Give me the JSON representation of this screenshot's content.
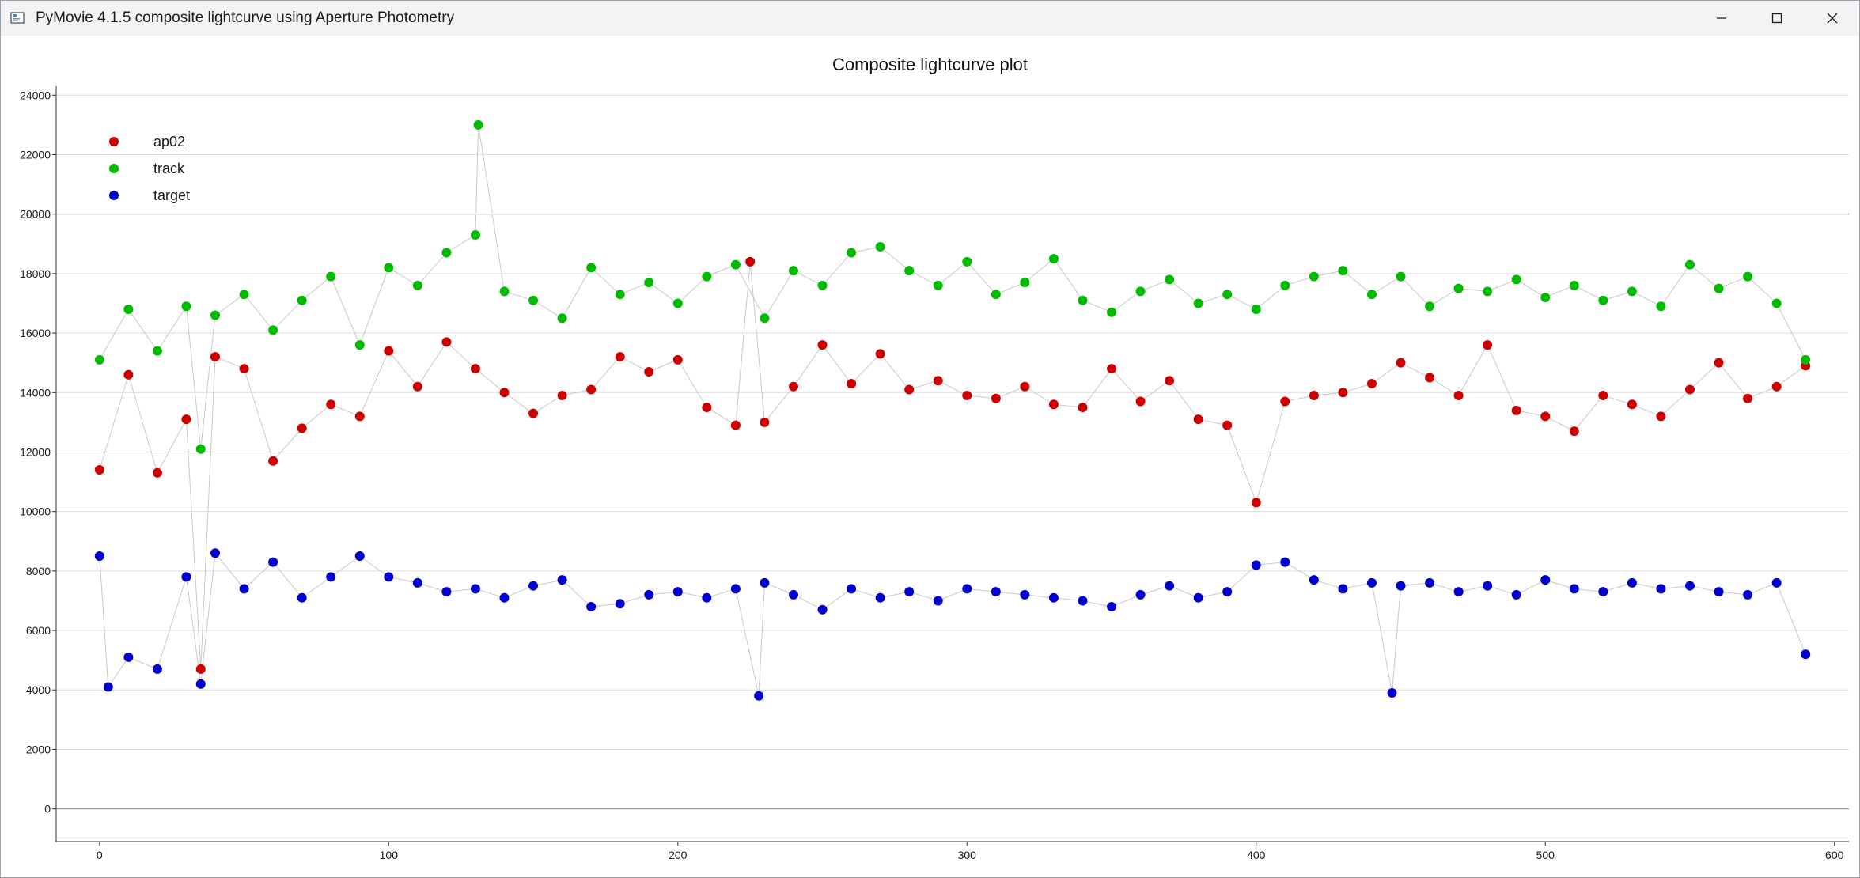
{
  "window": {
    "title": "PyMovie 4.1.5 composite lightcurve using Aperture Photometry",
    "icons": [
      "app-icon",
      "minimize-icon",
      "maximize-icon",
      "close-icon"
    ]
  },
  "chart_data": {
    "type": "scatter",
    "title": "Composite lightcurve plot",
    "xlabel": "",
    "ylabel": "",
    "xlim": [
      -15,
      605
    ],
    "ylim": [
      -1100,
      24300
    ],
    "xticks": [
      0,
      100,
      200,
      300,
      400,
      500,
      600
    ],
    "yticks": [
      0,
      2000,
      4000,
      6000,
      8000,
      10000,
      12000,
      14000,
      16000,
      18000,
      20000,
      22000,
      24000
    ],
    "grid": true,
    "legend_position": "top-left",
    "connecting_line_color": "#c8c8c8",
    "series": [
      {
        "name": "ap02",
        "color": "#cc0000",
        "x": [
          0,
          10,
          20,
          30,
          35,
          40,
          50,
          60,
          70,
          80,
          90,
          100,
          110,
          120,
          130,
          140,
          150,
          160,
          170,
          180,
          190,
          200,
          210,
          220,
          225,
          230,
          240,
          250,
          260,
          270,
          280,
          290,
          300,
          310,
          320,
          330,
          340,
          350,
          360,
          370,
          380,
          390,
          400,
          410,
          420,
          430,
          440,
          450,
          460,
          470,
          480,
          490,
          500,
          510,
          520,
          530,
          540,
          550,
          560,
          570,
          580,
          590
        ],
        "y": [
          11400,
          14600,
          11300,
          13100,
          4700,
          15200,
          14800,
          11700,
          12800,
          13600,
          13200,
          15400,
          14200,
          15700,
          14800,
          14000,
          13300,
          13900,
          14100,
          15200,
          14700,
          15100,
          13500,
          12900,
          18400,
          13000,
          14200,
          15600,
          14300,
          15300,
          14100,
          14400,
          13900,
          13800,
          14200,
          13600,
          13500,
          14800,
          13700,
          14400,
          13100,
          12900,
          10300,
          13700,
          13900,
          14000,
          14300,
          15000,
          14500,
          13900,
          15600,
          13400,
          13200,
          12700,
          13900,
          13600,
          13200,
          14100,
          15000,
          13800,
          14200,
          14900
        ]
      },
      {
        "name": "track",
        "color": "#00bb00",
        "x": [
          0,
          10,
          20,
          30,
          35,
          40,
          50,
          60,
          70,
          80,
          90,
          100,
          110,
          120,
          130,
          131,
          140,
          150,
          160,
          170,
          180,
          190,
          200,
          210,
          220,
          230,
          240,
          250,
          260,
          270,
          280,
          290,
          300,
          310,
          320,
          330,
          340,
          350,
          360,
          370,
          380,
          390,
          400,
          410,
          420,
          430,
          440,
          450,
          460,
          470,
          480,
          490,
          500,
          510,
          520,
          530,
          540,
          550,
          560,
          570,
          580,
          590
        ],
        "y": [
          15100,
          16800,
          15400,
          16900,
          12100,
          16600,
          17300,
          16100,
          17100,
          17900,
          15600,
          18200,
          17600,
          18700,
          19300,
          23000,
          17400,
          17100,
          16500,
          18200,
          17300,
          17700,
          17000,
          17900,
          18300,
          16500,
          18100,
          17600,
          18700,
          18900,
          18100,
          17600,
          18400,
          17300,
          17700,
          18500,
          17100,
          16700,
          17400,
          17800,
          17000,
          17300,
          16800,
          17600,
          17900,
          18100,
          17300,
          17900,
          16900,
          17500,
          17400,
          17800,
          17200,
          17600,
          17100,
          17400,
          16900,
          18300,
          17500,
          17900,
          17000,
          15100
        ]
      },
      {
        "name": "target",
        "color": "#0000cc",
        "x": [
          0,
          3,
          10,
          20,
          30,
          35,
          40,
          50,
          60,
          70,
          80,
          90,
          100,
          110,
          120,
          130,
          140,
          150,
          160,
          170,
          180,
          190,
          200,
          210,
          220,
          228,
          230,
          240,
          250,
          260,
          270,
          280,
          290,
          300,
          310,
          320,
          330,
          340,
          350,
          360,
          370,
          380,
          390,
          400,
          410,
          420,
          430,
          440,
          447,
          450,
          460,
          470,
          480,
          490,
          500,
          510,
          520,
          530,
          540,
          550,
          560,
          570,
          580,
          590
        ],
        "y": [
          8500,
          4100,
          5100,
          4700,
          7800,
          4200,
          8600,
          7400,
          8300,
          7100,
          7800,
          8500,
          7800,
          7600,
          7300,
          7400,
          7100,
          7500,
          7700,
          6800,
          6900,
          7200,
          7300,
          7100,
          7400,
          3800,
          7600,
          7200,
          6700,
          7400,
          7100,
          7300,
          7000,
          7400,
          7300,
          7200,
          7100,
          7000,
          6800,
          7200,
          7500,
          7100,
          7300,
          8200,
          8300,
          7700,
          7400,
          7600,
          3900,
          7500,
          7600,
          7300,
          7500,
          7200,
          7700,
          7400,
          7300,
          7600,
          7400,
          7500,
          7300,
          7200,
          7600,
          5200
        ]
      }
    ]
  }
}
